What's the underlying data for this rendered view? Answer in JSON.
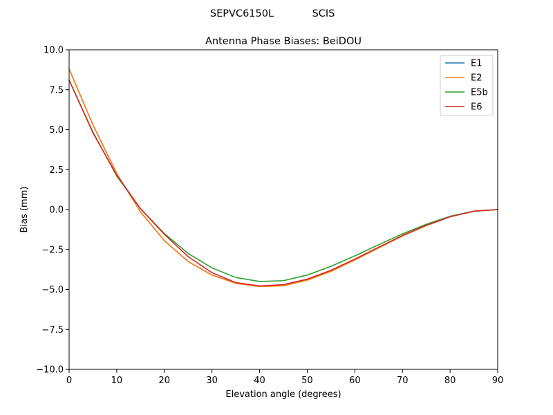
{
  "chart_data": {
    "type": "line",
    "suptitle_left": "SEPVC6150L",
    "suptitle_right": "SCIS",
    "title": "Antenna Phase Biases: BeiDOU",
    "xlabel": "Elevation angle (degrees)",
    "ylabel": "Bias (mm)",
    "xlim": [
      0,
      90
    ],
    "ylim": [
      -10,
      10
    ],
    "xticks": [
      0,
      10,
      20,
      30,
      40,
      50,
      60,
      70,
      80,
      90
    ],
    "yticks": [
      -10.0,
      -7.5,
      -5.0,
      -2.5,
      0.0,
      2.5,
      5.0,
      7.5,
      10.0
    ],
    "xtick_labels": [
      "0",
      "10",
      "20",
      "30",
      "40",
      "50",
      "60",
      "70",
      "80",
      "90"
    ],
    "ytick_labels": [
      "−10.0",
      "−7.5",
      "−5.0",
      "−2.5",
      "0.0",
      "2.5",
      "5.0",
      "7.5",
      "10.0"
    ],
    "grid": false,
    "legend_position": "top-right",
    "x": [
      0,
      5,
      10,
      15,
      20,
      25,
      30,
      35,
      40,
      45,
      50,
      55,
      60,
      65,
      70,
      75,
      80,
      85,
      90
    ],
    "series": [
      {
        "name": "E1",
        "color": "#1f77b4",
        "values": [
          8.8,
          5.3,
          2.25,
          -0.15,
          -1.95,
          -3.25,
          -4.1,
          -4.6,
          -4.8,
          -4.75,
          -4.4,
          -3.85,
          -3.15,
          -2.4,
          -1.65,
          -1.0,
          -0.45,
          -0.1,
          0.0
        ]
      },
      {
        "name": "E2",
        "color": "#ff7f0e",
        "values": [
          8.8,
          5.3,
          2.25,
          -0.15,
          -1.95,
          -3.25,
          -4.1,
          -4.62,
          -4.82,
          -4.77,
          -4.42,
          -3.87,
          -3.15,
          -2.4,
          -1.65,
          -1.0,
          -0.45,
          -0.1,
          0.0
        ]
      },
      {
        "name": "E5b",
        "color": "#2ca02c",
        "values": [
          8.1,
          4.85,
          2.1,
          0.05,
          -1.5,
          -2.75,
          -3.65,
          -4.25,
          -4.5,
          -4.45,
          -4.1,
          -3.55,
          -2.9,
          -2.2,
          -1.52,
          -0.92,
          -0.42,
          -0.1,
          0.0
        ]
      },
      {
        "name": "E6",
        "color": "#d62728",
        "values": [
          8.1,
          4.8,
          2.15,
          0.05,
          -1.55,
          -2.95,
          -3.95,
          -4.57,
          -4.78,
          -4.7,
          -4.35,
          -3.8,
          -3.1,
          -2.35,
          -1.62,
          -0.98,
          -0.45,
          -0.1,
          0.0
        ]
      }
    ]
  }
}
